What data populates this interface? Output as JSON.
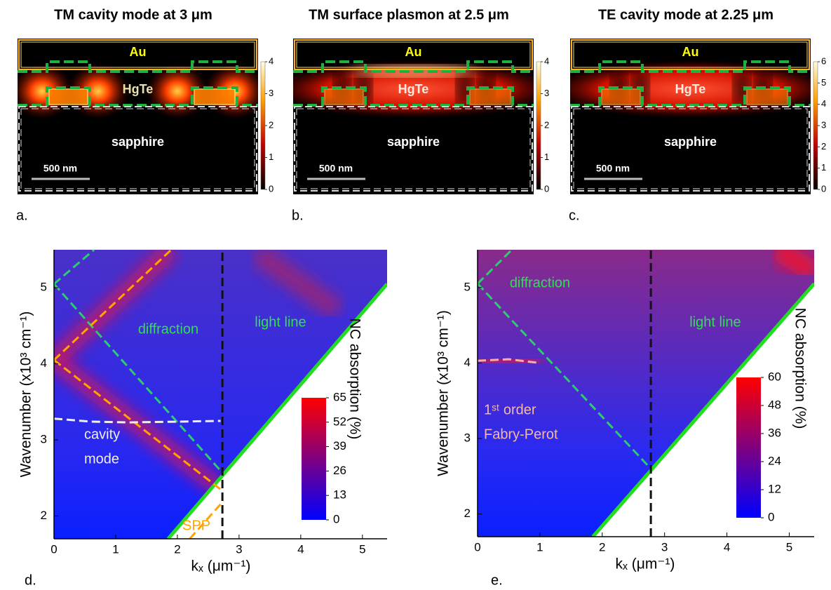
{
  "panels": [
    {
      "title": "TM cavity mode at 3 μm",
      "label": "a.",
      "top_region": "Au",
      "middle_region": "HgTe",
      "bottom_region": "sapphire",
      "scale_bar": "500 nm",
      "colorbar_lim": [
        0,
        4
      ],
      "colorbar_ticks": [
        0,
        1,
        2,
        3,
        4
      ]
    },
    {
      "title": "TM surface plasmon at 2.5 μm",
      "label": "b.",
      "top_region": "Au",
      "middle_region": "HgTe",
      "bottom_region": "sapphire",
      "scale_bar": "500 nm",
      "colorbar_lim": [
        0,
        4
      ],
      "colorbar_ticks": [
        0,
        1,
        2,
        3,
        4
      ]
    },
    {
      "title": "TE cavity mode at 2.25 μm",
      "label": "c.",
      "top_region": "Au",
      "middle_region": "HgTe",
      "bottom_region": "sapphire",
      "scale_bar": "500 nm",
      "colorbar_lim": [
        0,
        6
      ],
      "colorbar_ticks": [
        0,
        1,
        2,
        3,
        4,
        5,
        6
      ]
    }
  ],
  "chart_data": [
    {
      "type": "heatmap",
      "label": "d.",
      "xlabel": "kₓ (μm⁻¹)",
      "ylabel": "Wavenumber (x10³ cm⁻¹)",
      "xlim": [
        0,
        5.4
      ],
      "ylim": [
        1.7,
        5.5
      ],
      "xticks": [
        0,
        1,
        2,
        3,
        4,
        5
      ],
      "yticks": [
        2,
        3,
        4,
        5
      ],
      "colorbar": {
        "label": "NC absorption (%)",
        "lim": [
          0,
          65
        ],
        "ticks": [
          0,
          13,
          26,
          39,
          52,
          65
        ],
        "colors": [
          "#0000ff",
          "#ff0000"
        ]
      },
      "lines": [
        {
          "x": [
            1.85,
            5.4
          ],
          "y": [
            1.7,
            5.05
          ],
          "color": "#22dd22",
          "dashed": false
        },
        {
          "x": [
            0,
            2.75
          ],
          "y": [
            5.05,
            2.55
          ],
          "color": "#2ecc71",
          "dashed": true
        },
        {
          "x": [
            0,
            0.65
          ],
          "y": [
            5.05,
            5.5
          ],
          "color": "#2ecc71",
          "dashed": true
        },
        {
          "x": [
            0,
            2.7
          ],
          "y": [
            4.05,
            2.35
          ],
          "color": "#ffa500",
          "dashed": true
        },
        {
          "x": [
            0,
            1.9
          ],
          "y": [
            4.05,
            5.5
          ],
          "color": "#ffa500",
          "dashed": true
        },
        {
          "x": [
            2.2,
            2.75
          ],
          "y": [
            1.7,
            2.2
          ],
          "color": "#ffa500",
          "dashed": true
        },
        {
          "x": [
            0,
            0.6,
            1.2,
            2,
            2.7
          ],
          "y": [
            3.28,
            3.24,
            3.23,
            3.24,
            3.25
          ],
          "color": "#eeeeee",
          "dashed": true
        },
        {
          "x": [
            2.73,
            2.73
          ],
          "y": [
            1.7,
            5.5
          ],
          "color": "#111111",
          "dashed": true
        }
      ],
      "annotations": [
        {
          "text": "diffraction",
          "color": "#33dd55"
        },
        {
          "text": "light line",
          "color": "#33dd55"
        },
        {
          "text": "cavity",
          "color": "#eeeeee"
        },
        {
          "text": "mode",
          "color": "#eeeeee"
        },
        {
          "text": "SPP",
          "color": "#ffa500"
        }
      ]
    },
    {
      "type": "heatmap",
      "label": "e.",
      "xlabel": "kₓ (μm⁻¹)",
      "ylabel": "Wavenumber (x10³ cm⁻¹)",
      "xlim": [
        0,
        5.4
      ],
      "ylim": [
        1.7,
        5.5
      ],
      "xticks": [
        0,
        1,
        2,
        3,
        4,
        5
      ],
      "yticks": [
        2,
        3,
        4,
        5
      ],
      "colorbar": {
        "label": "NC absorption (%)",
        "lim": [
          0,
          60
        ],
        "ticks": [
          0,
          12,
          24,
          36,
          48,
          60
        ],
        "colors": [
          "#0000ff",
          "#ff0000"
        ]
      },
      "lines": [
        {
          "x": [
            1.85,
            5.4
          ],
          "y": [
            1.7,
            5.05
          ],
          "color": "#22dd22",
          "dashed": false
        },
        {
          "x": [
            0,
            2.78
          ],
          "y": [
            5.05,
            2.6
          ],
          "color": "#2ecc71",
          "dashed": true
        },
        {
          "x": [
            0,
            0.55
          ],
          "y": [
            5.05,
            5.5
          ],
          "color": "#2ecc71",
          "dashed": true
        },
        {
          "x": [
            0,
            0.5,
            1
          ],
          "y": [
            4.03,
            4.05,
            4.0
          ],
          "color": "#f4b0a0",
          "dashed": true
        },
        {
          "x": [
            2.78,
            2.78
          ],
          "y": [
            1.7,
            5.5
          ],
          "color": "#111111",
          "dashed": true
        }
      ],
      "annotations": [
        {
          "text": "diffraction",
          "color": "#33dd55"
        },
        {
          "text": "light line",
          "color": "#33dd55"
        },
        {
          "text": "1ˢᵗ order",
          "color": "#f4b8a8"
        },
        {
          "text": "Fabry-Perot",
          "color": "#f4b8a8"
        }
      ]
    }
  ]
}
